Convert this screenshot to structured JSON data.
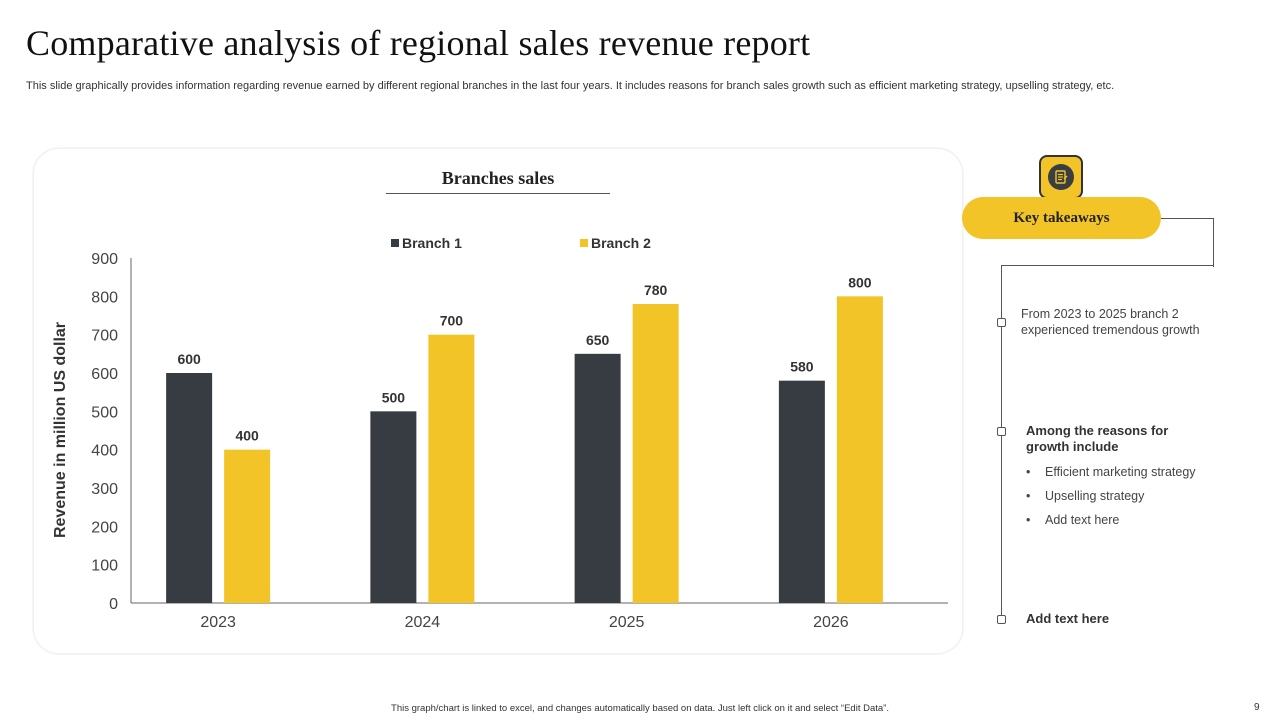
{
  "slide": {
    "title": "Comparative analysis of regional sales revenue report",
    "subtitle": "This slide graphically provides information regarding revenue earned by different regional branches in the last four years. It includes reasons for branch sales growth such as efficient marketing strategy, upselling strategy, etc.",
    "footer": "This graph/chart is linked to excel, and changes automatically based on data. Just left click on it and select “Edit Data”.",
    "page_number": "9"
  },
  "chart_data": {
    "type": "bar",
    "title": "Branches sales",
    "xlabel": "",
    "ylabel": "Revenue in million US dollar",
    "categories": [
      "2023",
      "2024",
      "2025",
      "2026"
    ],
    "series": [
      {
        "name": "Branch 1",
        "color": "#363c41",
        "values": [
          600,
          500,
          650,
          580
        ]
      },
      {
        "name": "Branch 2",
        "color": "#f2c428",
        "values": [
          400,
          700,
          780,
          800
        ]
      }
    ],
    "ylim": [
      0,
      900
    ],
    "yticks": [
      0,
      100,
      200,
      300,
      400,
      500,
      600,
      700,
      800,
      900
    ],
    "legend": "top",
    "grid": false,
    "data_labels": true
  },
  "takeaways": {
    "heading": "Key takeaways",
    "icon": "notepad-icon",
    "accent": "#f2c428",
    "point1": "From 2023 to 2025 branch 2 experienced tremendous growth",
    "point2_heading": "Among the reasons for growth include",
    "bullets": [
      "Efficient marketing strategy",
      "Upselling strategy",
      "Add text here"
    ],
    "point3": "Add text here"
  }
}
